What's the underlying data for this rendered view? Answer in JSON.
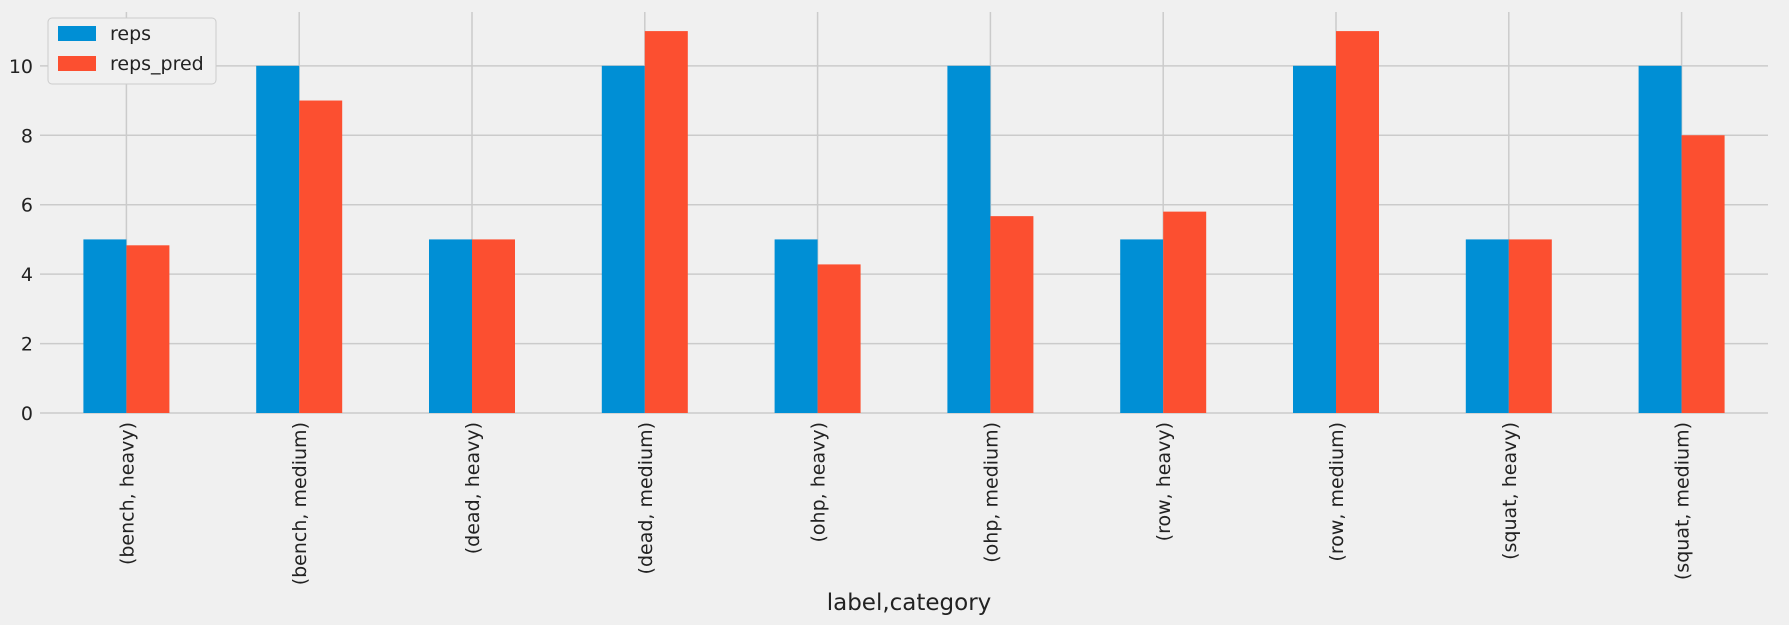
{
  "chart_data": {
    "type": "bar",
    "categories": [
      "(bench, heavy)",
      "(bench, medium)",
      "(dead, heavy)",
      "(dead, medium)",
      "(ohp, heavy)",
      "(ohp, medium)",
      "(row, heavy)",
      "(row, medium)",
      "(squat, heavy)",
      "(squat, medium)"
    ],
    "series": [
      {
        "name": "reps",
        "color": "#008fd5",
        "values": [
          5,
          10,
          5,
          10,
          5,
          10,
          5,
          10,
          5,
          10
        ]
      },
      {
        "name": "reps_pred",
        "color": "#fc4f30",
        "values": [
          4.83,
          9.0,
          5.0,
          11.0,
          4.28,
          5.67,
          5.8,
          11.0,
          5.0,
          8.0
        ]
      }
    ],
    "title": "",
    "xlabel": "label,category",
    "ylabel": "",
    "ylim": [
      0,
      11.55
    ],
    "yticks": [
      0,
      2,
      4,
      6,
      8,
      10
    ],
    "grid": true,
    "legend_position": "top-left",
    "background": "#f0f0f0",
    "grid_color": "#cbcbcb"
  }
}
